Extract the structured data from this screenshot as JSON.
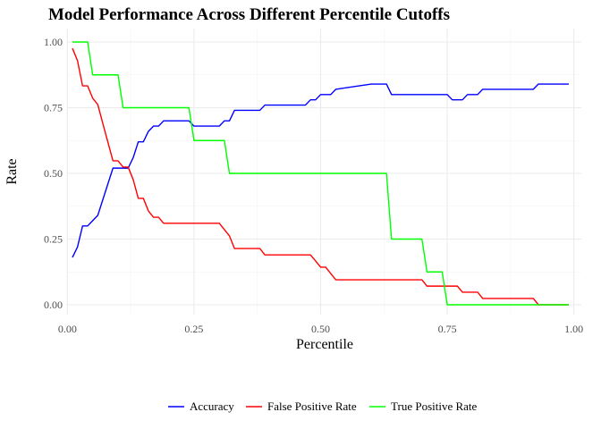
{
  "chart_data": {
    "type": "line",
    "title": "Model Performance Across Different Percentile Cutoffs",
    "xlabel": "Percentile",
    "ylabel": "Rate",
    "xlim": [
      0.0,
      1.0
    ],
    "ylim": [
      0.0,
      1.0
    ],
    "x_ticks": [
      0.0,
      0.25,
      0.5,
      0.75,
      1.0
    ],
    "x_tick_labels": [
      "0.00",
      "0.25",
      "0.50",
      "0.75",
      "1.00"
    ],
    "y_ticks": [
      0.0,
      0.25,
      0.5,
      0.75,
      1.0
    ],
    "y_tick_labels": [
      "0.00",
      "0.25",
      "0.50",
      "0.75",
      "1.00"
    ],
    "grid": true,
    "legend_position": "bottom",
    "series": [
      {
        "name": "Accuracy",
        "color": "#0000ff",
        "x": [
          0.01,
          0.02,
          0.03,
          0.04,
          0.05,
          0.06,
          0.07,
          0.08,
          0.09,
          0.1,
          0.11,
          0.12,
          0.13,
          0.14,
          0.15,
          0.16,
          0.17,
          0.18,
          0.19,
          0.2,
          0.21,
          0.22,
          0.23,
          0.24,
          0.25,
          0.26,
          0.27,
          0.28,
          0.29,
          0.3,
          0.31,
          0.32,
          0.33,
          0.34,
          0.35,
          0.36,
          0.37,
          0.38,
          0.39,
          0.4,
          0.45,
          0.47,
          0.48,
          0.49,
          0.5,
          0.51,
          0.52,
          0.53,
          0.6,
          0.63,
          0.64,
          0.7,
          0.72,
          0.74,
          0.75,
          0.76,
          0.77,
          0.78,
          0.79,
          0.8,
          0.81,
          0.82,
          0.9,
          0.92,
          0.93,
          0.99
        ],
        "y": [
          0.18,
          0.22,
          0.3,
          0.3,
          0.32,
          0.34,
          0.4,
          0.46,
          0.52,
          0.52,
          0.52,
          0.52,
          0.56,
          0.62,
          0.62,
          0.66,
          0.68,
          0.68,
          0.7,
          0.7,
          0.7,
          0.7,
          0.7,
          0.7,
          0.68,
          0.68,
          0.68,
          0.68,
          0.68,
          0.68,
          0.7,
          0.7,
          0.74,
          0.74,
          0.74,
          0.74,
          0.74,
          0.74,
          0.76,
          0.76,
          0.76,
          0.76,
          0.78,
          0.78,
          0.8,
          0.8,
          0.8,
          0.82,
          0.84,
          0.84,
          0.8,
          0.8,
          0.8,
          0.8,
          0.8,
          0.78,
          0.78,
          0.78,
          0.8,
          0.8,
          0.8,
          0.82,
          0.82,
          0.82,
          0.84,
          0.84
        ]
      },
      {
        "name": "False Positive Rate",
        "color": "#ff0000",
        "x": [
          0.01,
          0.02,
          0.03,
          0.04,
          0.05,
          0.06,
          0.07,
          0.08,
          0.09,
          0.1,
          0.11,
          0.12,
          0.13,
          0.14,
          0.15,
          0.16,
          0.17,
          0.18,
          0.19,
          0.2,
          0.24,
          0.25,
          0.3,
          0.31,
          0.32,
          0.33,
          0.34,
          0.38,
          0.39,
          0.47,
          0.48,
          0.49,
          0.5,
          0.51,
          0.52,
          0.53,
          0.63,
          0.7,
          0.71,
          0.75,
          0.76,
          0.77,
          0.78,
          0.79,
          0.8,
          0.81,
          0.82,
          0.92,
          0.93,
          0.99
        ],
        "y": [
          0.976,
          0.929,
          0.833,
          0.833,
          0.786,
          0.762,
          0.69,
          0.619,
          0.548,
          0.548,
          0.524,
          0.524,
          0.476,
          0.405,
          0.405,
          0.357,
          0.333,
          0.333,
          0.31,
          0.31,
          0.31,
          0.31,
          0.31,
          0.286,
          0.262,
          0.214,
          0.214,
          0.214,
          0.19,
          0.19,
          0.19,
          0.167,
          0.143,
          0.143,
          0.119,
          0.095,
          0.095,
          0.095,
          0.071,
          0.071,
          0.071,
          0.071,
          0.048,
          0.048,
          0.048,
          0.048,
          0.024,
          0.024,
          0.0,
          0.0
        ]
      },
      {
        "name": "True Positive Rate",
        "color": "#00ff00",
        "x": [
          0.01,
          0.02,
          0.03,
          0.04,
          0.05,
          0.06,
          0.09,
          0.1,
          0.11,
          0.12,
          0.24,
          0.25,
          0.26,
          0.3,
          0.31,
          0.32,
          0.33,
          0.63,
          0.64,
          0.7,
          0.71,
          0.74,
          0.75,
          0.76,
          0.99
        ],
        "y": [
          1.0,
          1.0,
          1.0,
          1.0,
          0.875,
          0.875,
          0.875,
          0.875,
          0.75,
          0.75,
          0.75,
          0.625,
          0.625,
          0.625,
          0.625,
          0.5,
          0.5,
          0.5,
          0.25,
          0.25,
          0.125,
          0.125,
          0.0,
          0.0,
          0.0
        ]
      }
    ]
  }
}
